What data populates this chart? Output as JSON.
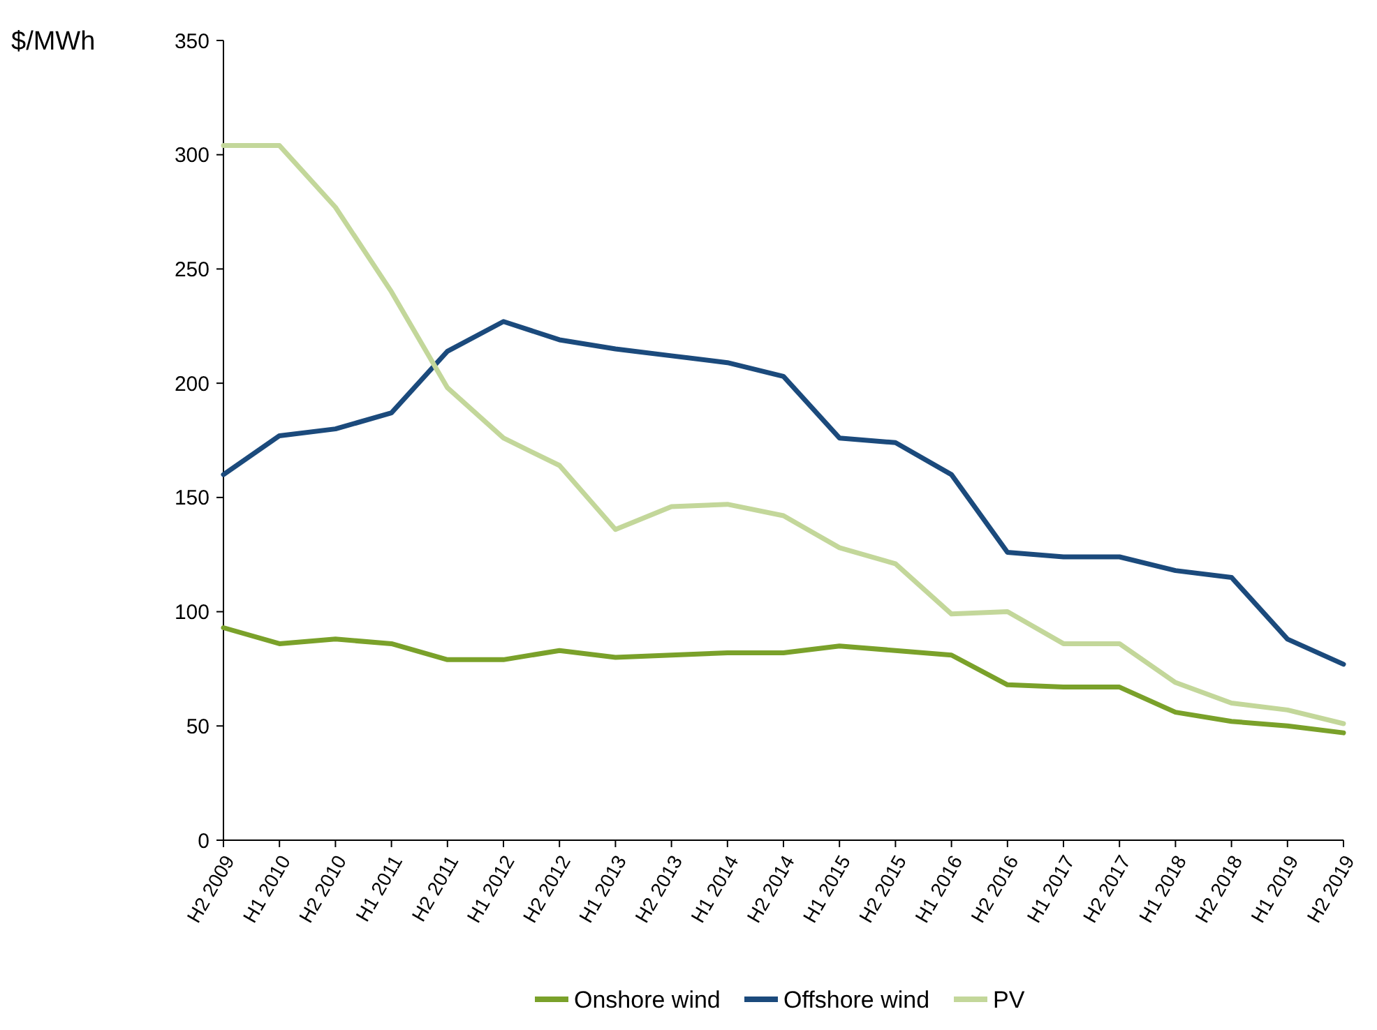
{
  "chart_data": {
    "type": "line",
    "ylabel": "$/MWh",
    "categories": [
      "H2 2009",
      "H1 2010",
      "H2 2010",
      "H1 2011",
      "H2 2011",
      "H1 2012",
      "H2 2012",
      "H1 2013",
      "H2 2013",
      "H1 2014",
      "H2 2014",
      "H1 2015",
      "H2 2015",
      "H1 2016",
      "H2 2016",
      "H1 2017",
      "H2 2017",
      "H1 2018",
      "H2 2018",
      "H1 2019",
      "H2 2019"
    ],
    "series": [
      {
        "name": "Onshore wind",
        "color": "#7aa12a",
        "values": [
          93,
          86,
          88,
          86,
          79,
          79,
          83,
          80,
          81,
          82,
          82,
          85,
          83,
          81,
          68,
          67,
          67,
          56,
          52,
          50,
          47
        ]
      },
      {
        "name": "Offshore wind",
        "color": "#1b4a7c",
        "values": [
          160,
          177,
          180,
          187,
          214,
          227,
          219,
          215,
          212,
          209,
          203,
          176,
          174,
          160,
          126,
          124,
          124,
          118,
          115,
          88,
          77
        ]
      },
      {
        "name": "PV",
        "color": "#c3d79a",
        "values": [
          304,
          304,
          277,
          240,
          198,
          176,
          164,
          136,
          146,
          147,
          142,
          128,
          121,
          99,
          100,
          86,
          86,
          69,
          60,
          57,
          51
        ]
      }
    ],
    "ylim": [
      0,
      350
    ],
    "yticks": [
      0,
      50,
      100,
      150,
      200,
      250,
      300,
      350
    ],
    "grid": false,
    "legend": "bottom",
    "marker": "none",
    "line_style": "solid"
  }
}
